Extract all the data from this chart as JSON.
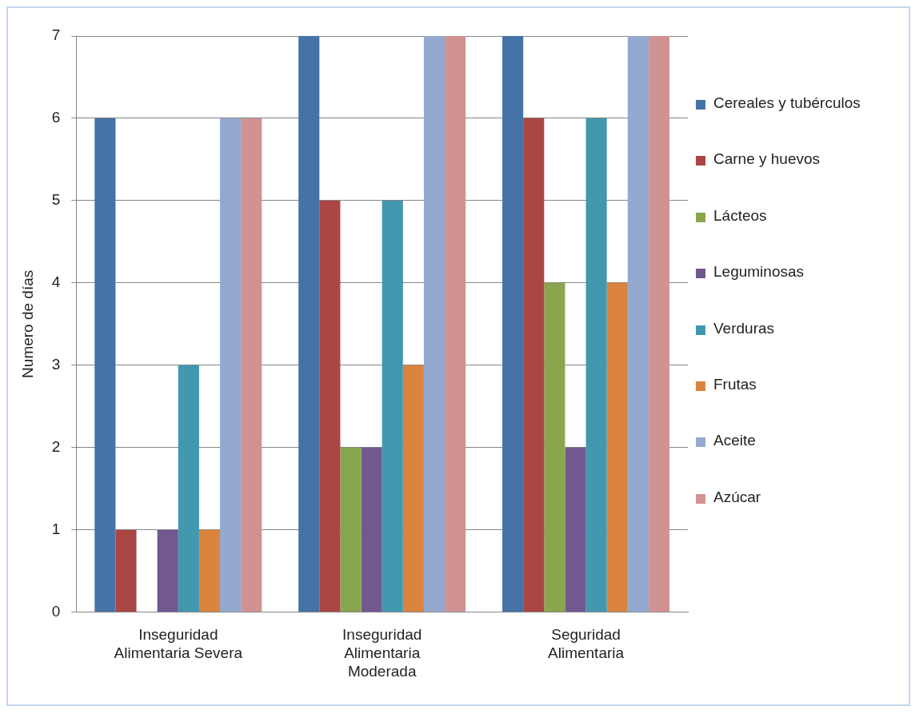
{
  "chart_data": {
    "type": "bar",
    "ylabel": "Numero de días",
    "categories": [
      "Inseguridad Alimentaria Severa",
      "Inseguridad Alimentaria Moderada",
      "Seguridad Alimentaria"
    ],
    "series": [
      {
        "name": "Cereales y tubérculos",
        "color": "#4572a7",
        "values": [
          6,
          7,
          7
        ]
      },
      {
        "name": "Carne y huevos",
        "color": "#aa4643",
        "values": [
          1,
          5,
          6
        ]
      },
      {
        "name": "Lácteos",
        "color": "#89a54e",
        "values": [
          0,
          2,
          4
        ]
      },
      {
        "name": "Leguminosas",
        "color": "#71588f",
        "values": [
          1,
          2,
          2
        ]
      },
      {
        "name": "Verduras",
        "color": "#4198af",
        "values": [
          3,
          5,
          6
        ]
      },
      {
        "name": "Frutas",
        "color": "#db843d",
        "values": [
          1,
          3,
          4
        ]
      },
      {
        "name": "Aceite",
        "color": "#93a9cf",
        "values": [
          6,
          7,
          7
        ]
      },
      {
        "name": "Azúcar",
        "color": "#d19392",
        "values": [
          6,
          7,
          7
        ]
      }
    ],
    "ylim": [
      0,
      7
    ],
    "yticks": [
      0,
      1,
      2,
      3,
      4,
      5,
      6,
      7
    ],
    "grid": "y",
    "legend": "right"
  }
}
